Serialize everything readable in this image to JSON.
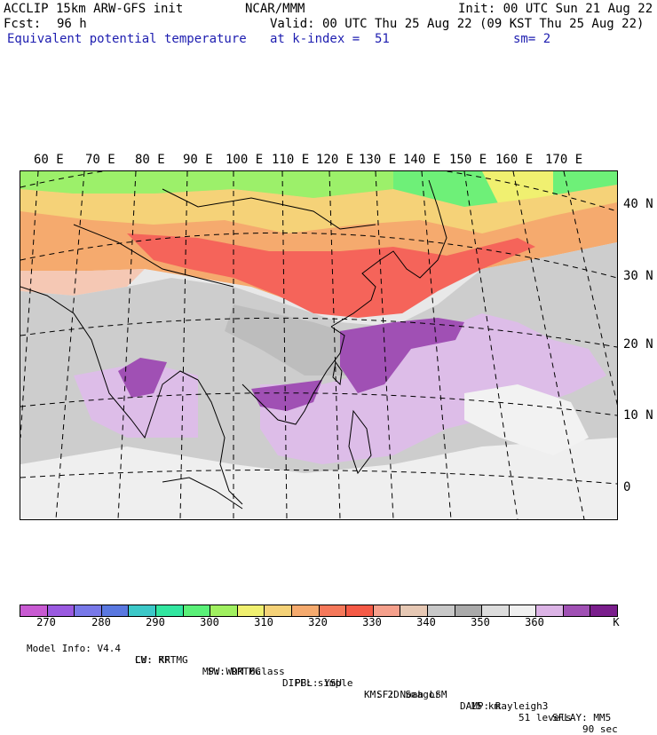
{
  "header": {
    "model": "ACCLIP 15km ARW-GFS init",
    "center": "NCAR/MMM",
    "init": "Init: 00 UTC Sun 21 Aug 22",
    "fcst_label": "Fcst:",
    "fcst_value": "96 h",
    "valid": "Valid: 00 UTC Thu 25 Aug 22 (09 KST Thu 25 Aug 22)",
    "field": "Equivalent potential temperature",
    "level": "at k-index =  51",
    "smoothing": "sm= 2"
  },
  "map": {
    "lon_labels": [
      "60 E",
      "70 E",
      "80 E",
      "90 E",
      "100 E",
      "110 E",
      "120 E",
      "130 E",
      "140 E",
      "150 E",
      "160 E",
      "170 E"
    ],
    "lat_labels": [
      "40 N",
      "30 N",
      "20 N",
      "10 N",
      "0"
    ]
  },
  "colorbar": {
    "unit": "K",
    "labels": [
      "270",
      "280",
      "290",
      "300",
      "310",
      "320",
      "330",
      "340",
      "350",
      "360"
    ],
    "colors": [
      "#c85ad2",
      "#9a5ae0",
      "#7878e8",
      "#5a78e0",
      "#3cc8c8",
      "#32e6a0",
      "#5af078",
      "#a0f060",
      "#f0f070",
      "#f5d278",
      "#f5aa6e",
      "#f5785a",
      "#f55a46",
      "#f5a08c",
      "#e6c8b4",
      "#c8c8c8",
      "#aaaaaa",
      "#dddddd",
      "#f0f0f0",
      "#dcb4e6",
      "#a050b4",
      "#7a1e8c"
    ]
  },
  "footer": {
    "line1": [
      "Model Info: V4.4",
      "CU: KF",
      "MP: WDM 6class",
      "PBL: YSU",
      "SF: Noah LSM",
      "15 km",
      "51 levels",
      "90 sec"
    ],
    "line2": [
      "LW: RRTMG",
      "SW: RRTMG",
      "DIFF: simple",
      "KM: 2D Smagor",
      "DAMP: Rayleigh3",
      "SFLAY: MM5"
    ]
  }
}
